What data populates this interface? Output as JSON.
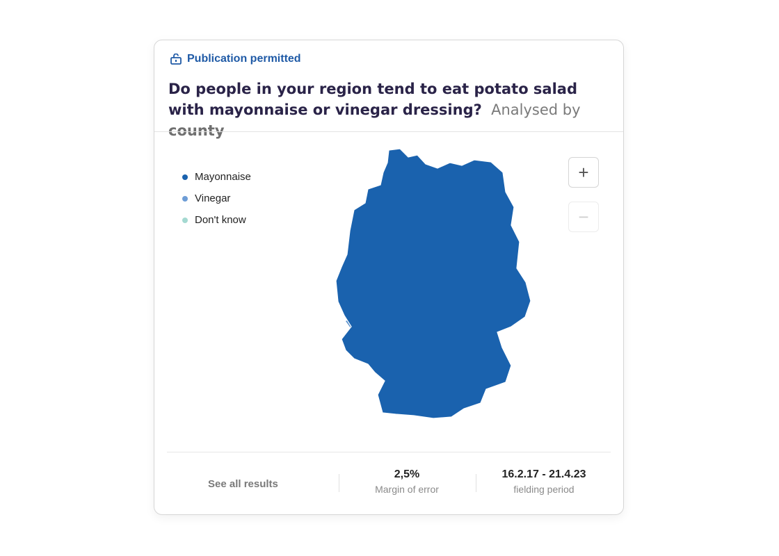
{
  "badge": {
    "icon": "unlock-icon",
    "label": "Publication permitted"
  },
  "question": {
    "title": "Do people in your region tend to eat potato salad with mayonnaise or vinegar dressing?",
    "analysed_prefix": "Analysed by",
    "analysed_unit": "county"
  },
  "legend": [
    {
      "label": "Mayonnaise",
      "color": "#1a62ae"
    },
    {
      "label": "Vinegar",
      "color": "#6e9dd6"
    },
    {
      "label": "Don't know",
      "color": "#a4d9d1"
    }
  ],
  "map": {
    "region": "Germany",
    "north_color": "#1a62ae",
    "south_color": "#8eb3e3"
  },
  "zoom": {
    "in_label": "+",
    "out_label": "−"
  },
  "footer": {
    "see_all": "See all results",
    "margin_value": "2,5%",
    "margin_label": "Margin of error",
    "period_value": "16.2.17 - 21.4.23",
    "period_label": "fielding period"
  }
}
